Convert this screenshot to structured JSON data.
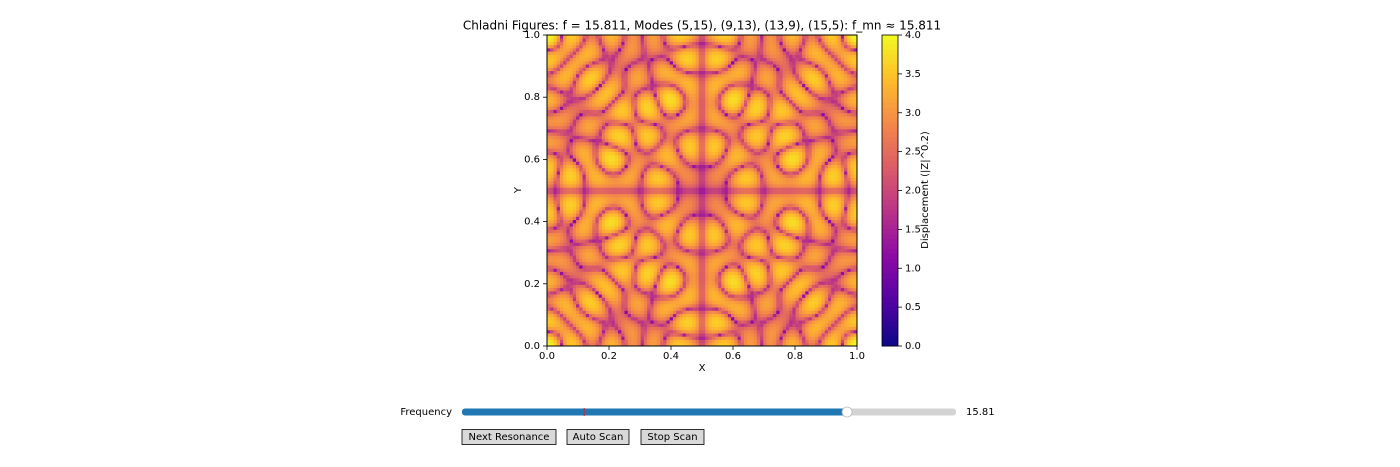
{
  "chart_data": {
    "type": "heatmap",
    "title": "Chladni Figures: f = 15.811, Modes (5,15), (9,13), (13,9), (15,5): f_mn ≈ 15.811",
    "frequency": 15.811,
    "modes": [
      [
        5,
        15
      ],
      [
        9,
        13
      ],
      [
        13,
        9
      ],
      [
        15,
        5
      ]
    ],
    "exponent": 0.2,
    "colormap": [
      "#0d0887",
      "#5302a3",
      "#8b0aa5",
      "#b83289",
      "#db5c68",
      "#f48849",
      "#febd2a",
      "#f0f921"
    ],
    "x_label": "X",
    "y_label": "Y",
    "xlim": [
      0,
      1
    ],
    "ylim": [
      0,
      1
    ],
    "xticks": [
      {
        "value": 0,
        "label": "0.0"
      },
      {
        "value": 0.2,
        "label": "0.2"
      },
      {
        "value": 0.4,
        "label": "0.4"
      },
      {
        "value": 0.6,
        "label": "0.6"
      },
      {
        "value": 0.8,
        "label": "0.8"
      },
      {
        "value": 1,
        "label": "1.0"
      }
    ],
    "yticks": [
      {
        "value": 0,
        "label": "0.0"
      },
      {
        "value": 0.2,
        "label": "0.2"
      },
      {
        "value": 0.4,
        "label": "0.4"
      },
      {
        "value": 0.6,
        "label": "0.6"
      },
      {
        "value": 0.8,
        "label": "0.8"
      },
      {
        "value": 1,
        "label": "1.0"
      }
    ],
    "colorbar_label": "Displacement (|Z|^0.2)",
    "clim": [
      0,
      4
    ],
    "cticks": [
      {
        "value": 0,
        "label": "0.0"
      },
      {
        "value": 0.5,
        "label": "0.5"
      },
      {
        "value": 1,
        "label": "1.0"
      },
      {
        "value": 1.5,
        "label": "1.5"
      },
      {
        "value": 2,
        "label": "2.0"
      },
      {
        "value": 2.5,
        "label": "2.5"
      },
      {
        "value": 3,
        "label": "3.0"
      },
      {
        "value": 3.5,
        "label": "3.5"
      },
      {
        "value": 4,
        "label": "4.0"
      }
    ]
  },
  "controls": {
    "slider": {
      "label": "Frequency",
      "min": 1,
      "max": 20,
      "init": 5.7,
      "value": 15.811,
      "value_label": "15.81",
      "color": "#1f77b4"
    },
    "buttons": [
      "Next Resonance",
      "Auto Scan",
      "Stop Scan"
    ]
  }
}
